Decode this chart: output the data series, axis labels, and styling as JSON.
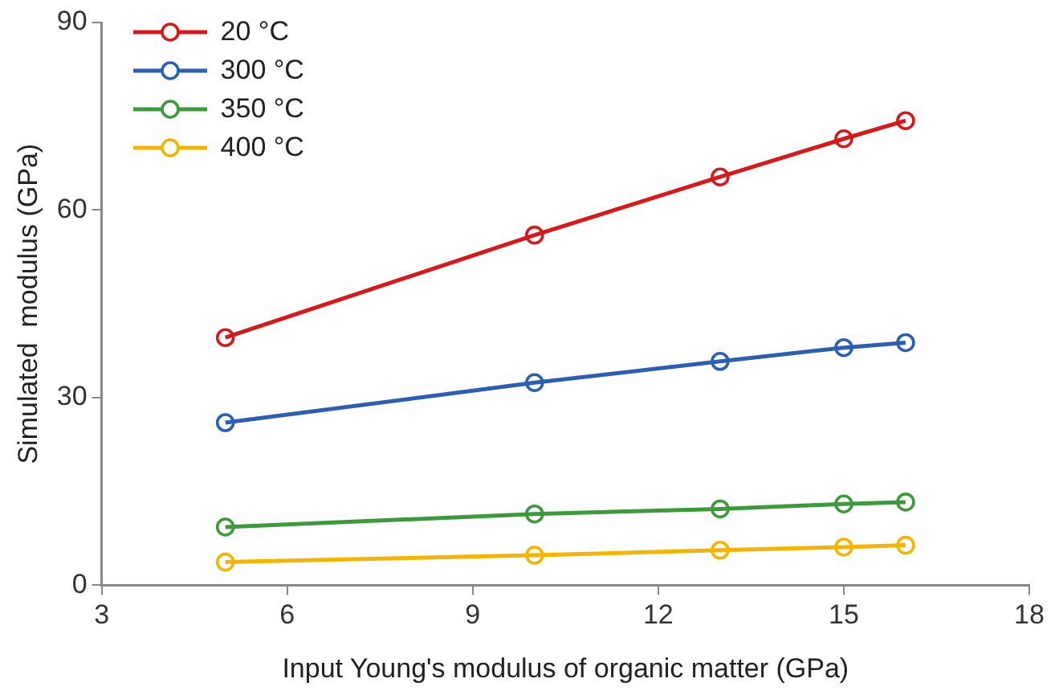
{
  "chart_data": {
    "type": "line",
    "xlabel": "Input Young's modulus of organic matter (GPa)",
    "ylabel": "Simulated  modulus (GPa)",
    "x": [
      5,
      10,
      13,
      15,
      16
    ],
    "series": [
      {
        "name": "20 °C",
        "color": "#d7191c",
        "values": [
          39.6,
          56.0,
          65.3,
          71.4,
          74.3
        ]
      },
      {
        "name": "300 °C",
        "color": "#2c5fb3",
        "values": [
          26.0,
          32.4,
          35.8,
          38.0,
          38.8
        ]
      },
      {
        "name": "350 °C",
        "color": "#3c9a3c",
        "values": [
          9.3,
          11.4,
          12.2,
          13.0,
          13.3
        ]
      },
      {
        "name": "400 °C",
        "color": "#f5b400",
        "values": [
          3.7,
          4.8,
          5.6,
          6.1,
          6.4
        ]
      }
    ],
    "xlim": [
      3,
      18
    ],
    "xticks": [
      3,
      6,
      9,
      12,
      15,
      18
    ],
    "ylim": [
      0,
      90
    ],
    "yticks": [
      0,
      30,
      60,
      90
    ],
    "grid": false,
    "legend": "top left",
    "marker": "circle",
    "line_style": "solid"
  }
}
